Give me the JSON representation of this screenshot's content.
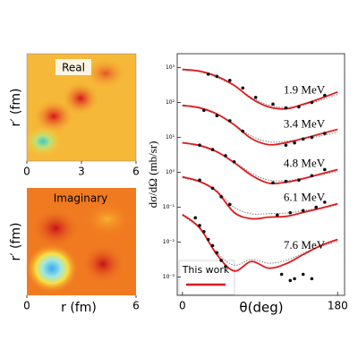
{
  "chart_data": [
    {
      "type": "heatmap",
      "title": "Real",
      "ylabel": "r′ (fm)",
      "xlim": [
        0,
        6
      ],
      "xticks": [
        0,
        3,
        6
      ]
    },
    {
      "type": "heatmap",
      "title": "Imaginary",
      "ylabel": "r′ (fm)",
      "xlabel": "r (fm)",
      "xlim": [
        0,
        6
      ],
      "xticks": [
        0,
        6
      ]
    },
    {
      "type": "line",
      "xlabel": "θ(deg)",
      "ylabel": "dσ/dΩ (mb/sr)",
      "log_y": true,
      "xlim": [
        -6,
        188
      ],
      "xticks": [
        0,
        180
      ],
      "ylim": [
        0.0003,
        2500
      ],
      "yticks": [
        {
          "value": 1000,
          "label": "10³"
        },
        {
          "value": 100,
          "label": "10²"
        },
        {
          "value": 10,
          "label": "10¹"
        },
        {
          "value": 1,
          "label": "10⁰"
        },
        {
          "value": 0.1,
          "label": "10⁻¹"
        },
        {
          "value": 0.01,
          "label": "10⁻²"
        },
        {
          "value": 0.001,
          "label": "10⁻³"
        }
      ],
      "color": "#e0191c",
      "dotted_color": "#8a8a8a",
      "point_color": "#111111",
      "legend": {
        "label": "This work",
        "position": "lower left"
      },
      "x": [
        0,
        20,
        40,
        60,
        80,
        100,
        120,
        140,
        160,
        180
      ],
      "series": [
        {
          "name": "1.9 MeV",
          "values": [
            890,
            790,
            560,
            310,
            130,
            75,
            66,
            89,
            130,
            200
          ],
          "dotted": [
            850,
            760,
            520,
            300,
            140,
            85,
            72,
            85,
            115,
            170
          ],
          "points_x": [
            30,
            40,
            55,
            70,
            85,
            105,
            120,
            135,
            150,
            165
          ],
          "points": [
            650,
            560,
            430,
            260,
            140,
            90,
            70,
            75,
            100,
            160
          ]
        },
        {
          "name": "3.4 MeV",
          "values": [
            83,
            71,
            47,
            23,
            9.3,
            6.2,
            7.1,
            9.3,
            12.6,
            17
          ],
          "dotted": [
            80,
            68,
            45,
            24,
            11,
            7.5,
            7.8,
            9,
            11,
            14
          ],
          "points_x": [
            25,
            40,
            55,
            70,
            120,
            130,
            140,
            150,
            165
          ],
          "points": [
            60,
            42,
            30,
            15,
            6,
            7,
            9,
            10,
            13
          ]
        },
        {
          "name": "4.8 MeV",
          "values": [
            7.1,
            5.9,
            3.9,
            1.9,
            0.83,
            0.49,
            0.52,
            0.66,
            0.89,
            1.2
          ],
          "dotted": [
            6.8,
            5.6,
            3.7,
            2,
            0.95,
            0.6,
            0.58,
            0.68,
            0.85,
            1.05
          ],
          "points_x": [
            20,
            35,
            50,
            60,
            105,
            120,
            135,
            150,
            165
          ],
          "points": [
            6,
            4.5,
            3,
            2,
            0.5,
            0.55,
            0.6,
            0.8,
            1.2
          ]
        },
        {
          "name": "6.1 MeV",
          "values": [
            0.74,
            0.55,
            0.28,
            0.071,
            0.047,
            0.052,
            0.055,
            0.071,
            0.093,
            0.126
          ],
          "dotted": [
            0.7,
            0.52,
            0.3,
            0.1,
            0.065,
            0.066,
            0.068,
            0.08,
            0.095,
            0.115
          ],
          "points_x": [
            20,
            35,
            45,
            55,
            110,
            125,
            140,
            155,
            165
          ],
          "points": [
            0.6,
            0.35,
            0.2,
            0.12,
            0.06,
            0.07,
            0.08,
            0.1,
            0.14
          ]
        },
        {
          "name": "7.6 MeV",
          "values": [
            0.062,
            0.026,
            0.0044,
            0.0015,
            0.0028,
            0.0018,
            0.0024,
            0.0044,
            0.0079,
            0.012
          ],
          "dotted": [
            0.058,
            0.024,
            0.005,
            0.0022,
            0.0032,
            0.0025,
            0.003,
            0.0048,
            0.0075,
            0.0105
          ],
          "points_x": [
            15,
            20,
            25,
            30,
            35,
            40,
            45,
            50,
            115,
            125,
            130,
            140,
            150
          ],
          "points": [
            0.05,
            0.03,
            0.02,
            0.012,
            0.008,
            0.005,
            0.003,
            0.002,
            0.0012,
            0.0008,
            0.0009,
            0.0012,
            0.0009
          ]
        }
      ]
    }
  ]
}
